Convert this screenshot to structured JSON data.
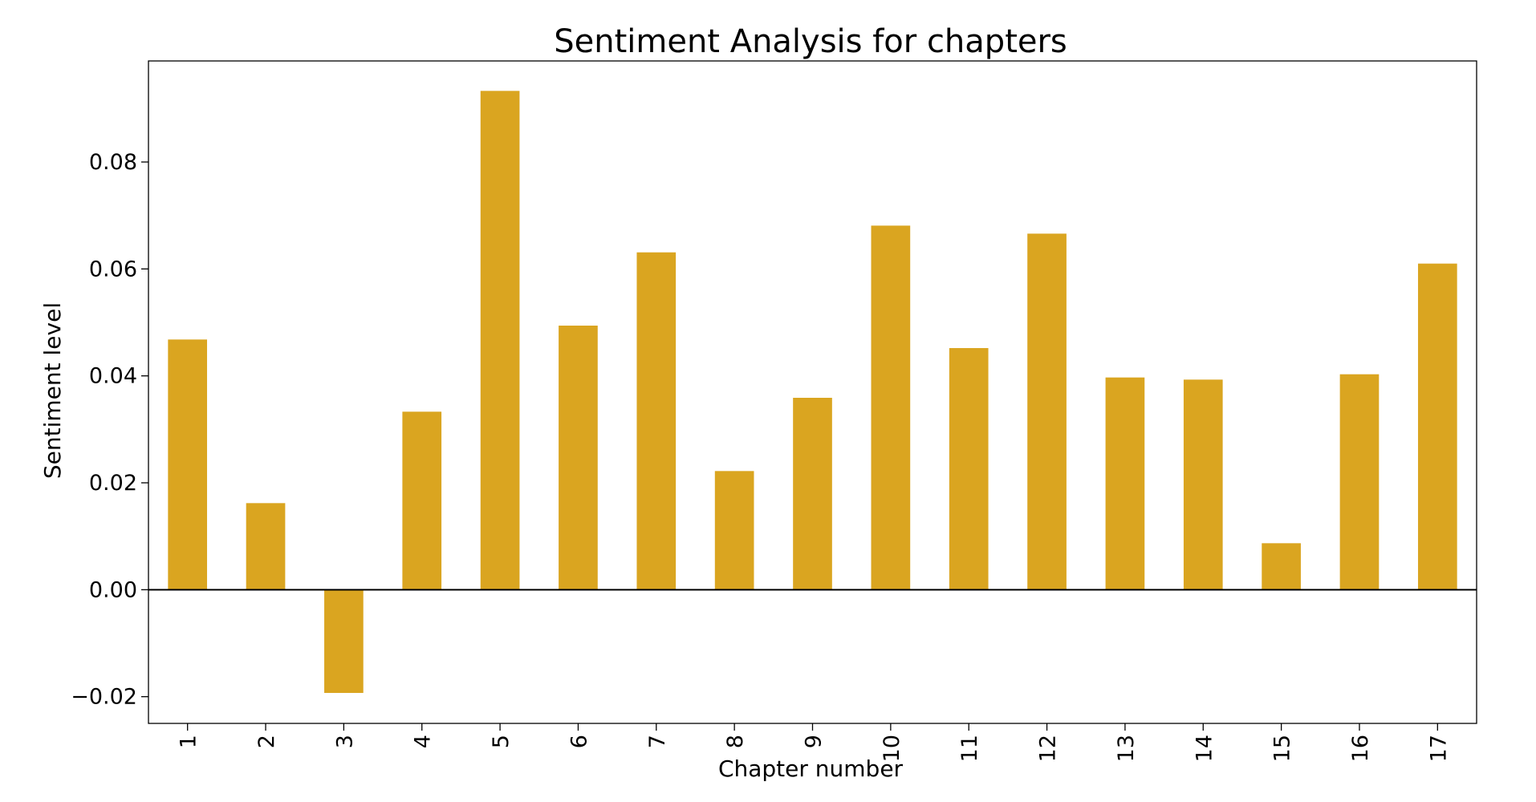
{
  "chart_data": {
    "type": "bar",
    "title": "Sentiment Analysis for chapters",
    "xlabel": "Chapter number",
    "ylabel": "Sentiment level",
    "categories": [
      "1",
      "2",
      "3",
      "4",
      "5",
      "6",
      "7",
      "8",
      "9",
      "10",
      "11",
      "12",
      "13",
      "14",
      "15",
      "16",
      "17"
    ],
    "values": [
      0.0468,
      0.0162,
      -0.0193,
      0.0333,
      0.0933,
      0.0494,
      0.0631,
      0.0222,
      0.0359,
      0.0681,
      0.0452,
      0.0666,
      0.0397,
      0.0393,
      0.0087,
      0.0403,
      0.061
    ],
    "ylim": [
      -0.025,
      0.0989
    ],
    "yticks": [
      -0.02,
      0.0,
      0.02,
      0.04,
      0.06,
      0.08
    ],
    "ytick_labels": [
      "−0.02",
      "0.00",
      "0.02",
      "0.04",
      "0.06",
      "0.08"
    ],
    "grid": false,
    "zero_line": true,
    "bar_color": "#DAA520"
  }
}
